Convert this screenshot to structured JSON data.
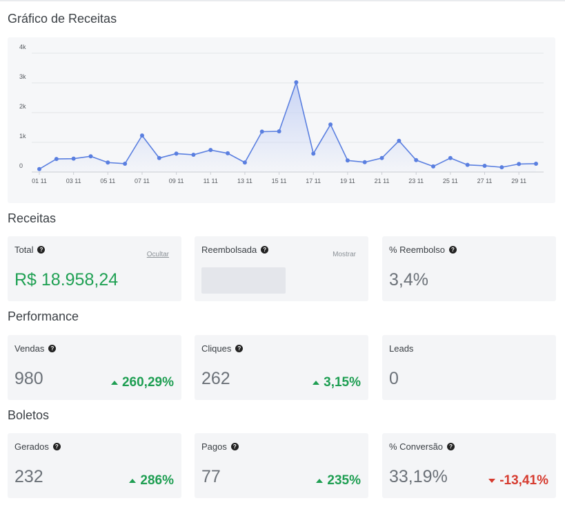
{
  "chart_section": {
    "title": "Gráfico de Receitas"
  },
  "chart_data": {
    "type": "area",
    "title": "",
    "xlabel": "",
    "ylabel": "",
    "ylim": [
      0,
      4000
    ],
    "y_ticks": [
      "0",
      "1k",
      "2k",
      "3k",
      "4k"
    ],
    "x_tick_labels": [
      "01 11",
      "03 11",
      "05 11",
      "07 11",
      "09 11",
      "11 11",
      "13 11",
      "15 11",
      "17 11",
      "19 11",
      "21 11",
      "23 11",
      "25 11",
      "27 11",
      "29 11"
    ],
    "grid": true,
    "legend": "none",
    "series": [
      {
        "x": [
          "01 11",
          "02 11",
          "03 11",
          "04 11",
          "05 11",
          "06 11",
          "07 11",
          "08 11",
          "09 11",
          "10 11",
          "11 11",
          "12 11",
          "13 11",
          "14 11",
          "15 11",
          "16 11",
          "17 11",
          "18 11",
          "19 11",
          "20 11",
          "21 11",
          "22 11",
          "23 11",
          "24 11",
          "25 11",
          "26 11",
          "27 11",
          "28 11",
          "29 11",
          "30 11"
        ],
        "values": [
          100,
          440,
          450,
          530,
          320,
          280,
          1230,
          470,
          620,
          580,
          740,
          630,
          320,
          1360,
          1370,
          3020,
          620,
          1600,
          390,
          330,
          470,
          1050,
          400,
          190,
          470,
          240,
          210,
          160,
          270,
          280
        ]
      }
    ],
    "colors": {
      "line": "#5a7fe0",
      "fill_top": "#c7d3f5"
    }
  },
  "receitas": {
    "title": "Receitas",
    "cards": [
      {
        "label": "Total",
        "help": "?",
        "link": "Ocultar",
        "value": "R$ 18.958,24"
      },
      {
        "label": "Reembolsada",
        "help": "?",
        "link": "Mostrar"
      },
      {
        "label": "% Reembolso",
        "help": "?",
        "value": "3,4%"
      }
    ]
  },
  "performance": {
    "title": "Performance",
    "cards": [
      {
        "label": "Vendas",
        "help": "?",
        "value": "980",
        "delta": "260,29%"
      },
      {
        "label": "Cliques",
        "help": "?",
        "value": "262",
        "delta": "3,15%"
      },
      {
        "label": "Leads",
        "value": "0"
      }
    ]
  },
  "boletos": {
    "title": "Boletos",
    "cards": [
      {
        "label": "Gerados",
        "help": "?",
        "value": "232",
        "delta": "286%"
      },
      {
        "label": "Pagos",
        "help": "?",
        "value": "77",
        "delta": "235%"
      },
      {
        "label": "% Conversão",
        "help": "?",
        "value": "33,19%",
        "delta": "-13,41%"
      }
    ]
  },
  "colors": {
    "positive": "#1e9e52",
    "negative": "#d63b2f",
    "card_bg": "#f4f5f7"
  }
}
